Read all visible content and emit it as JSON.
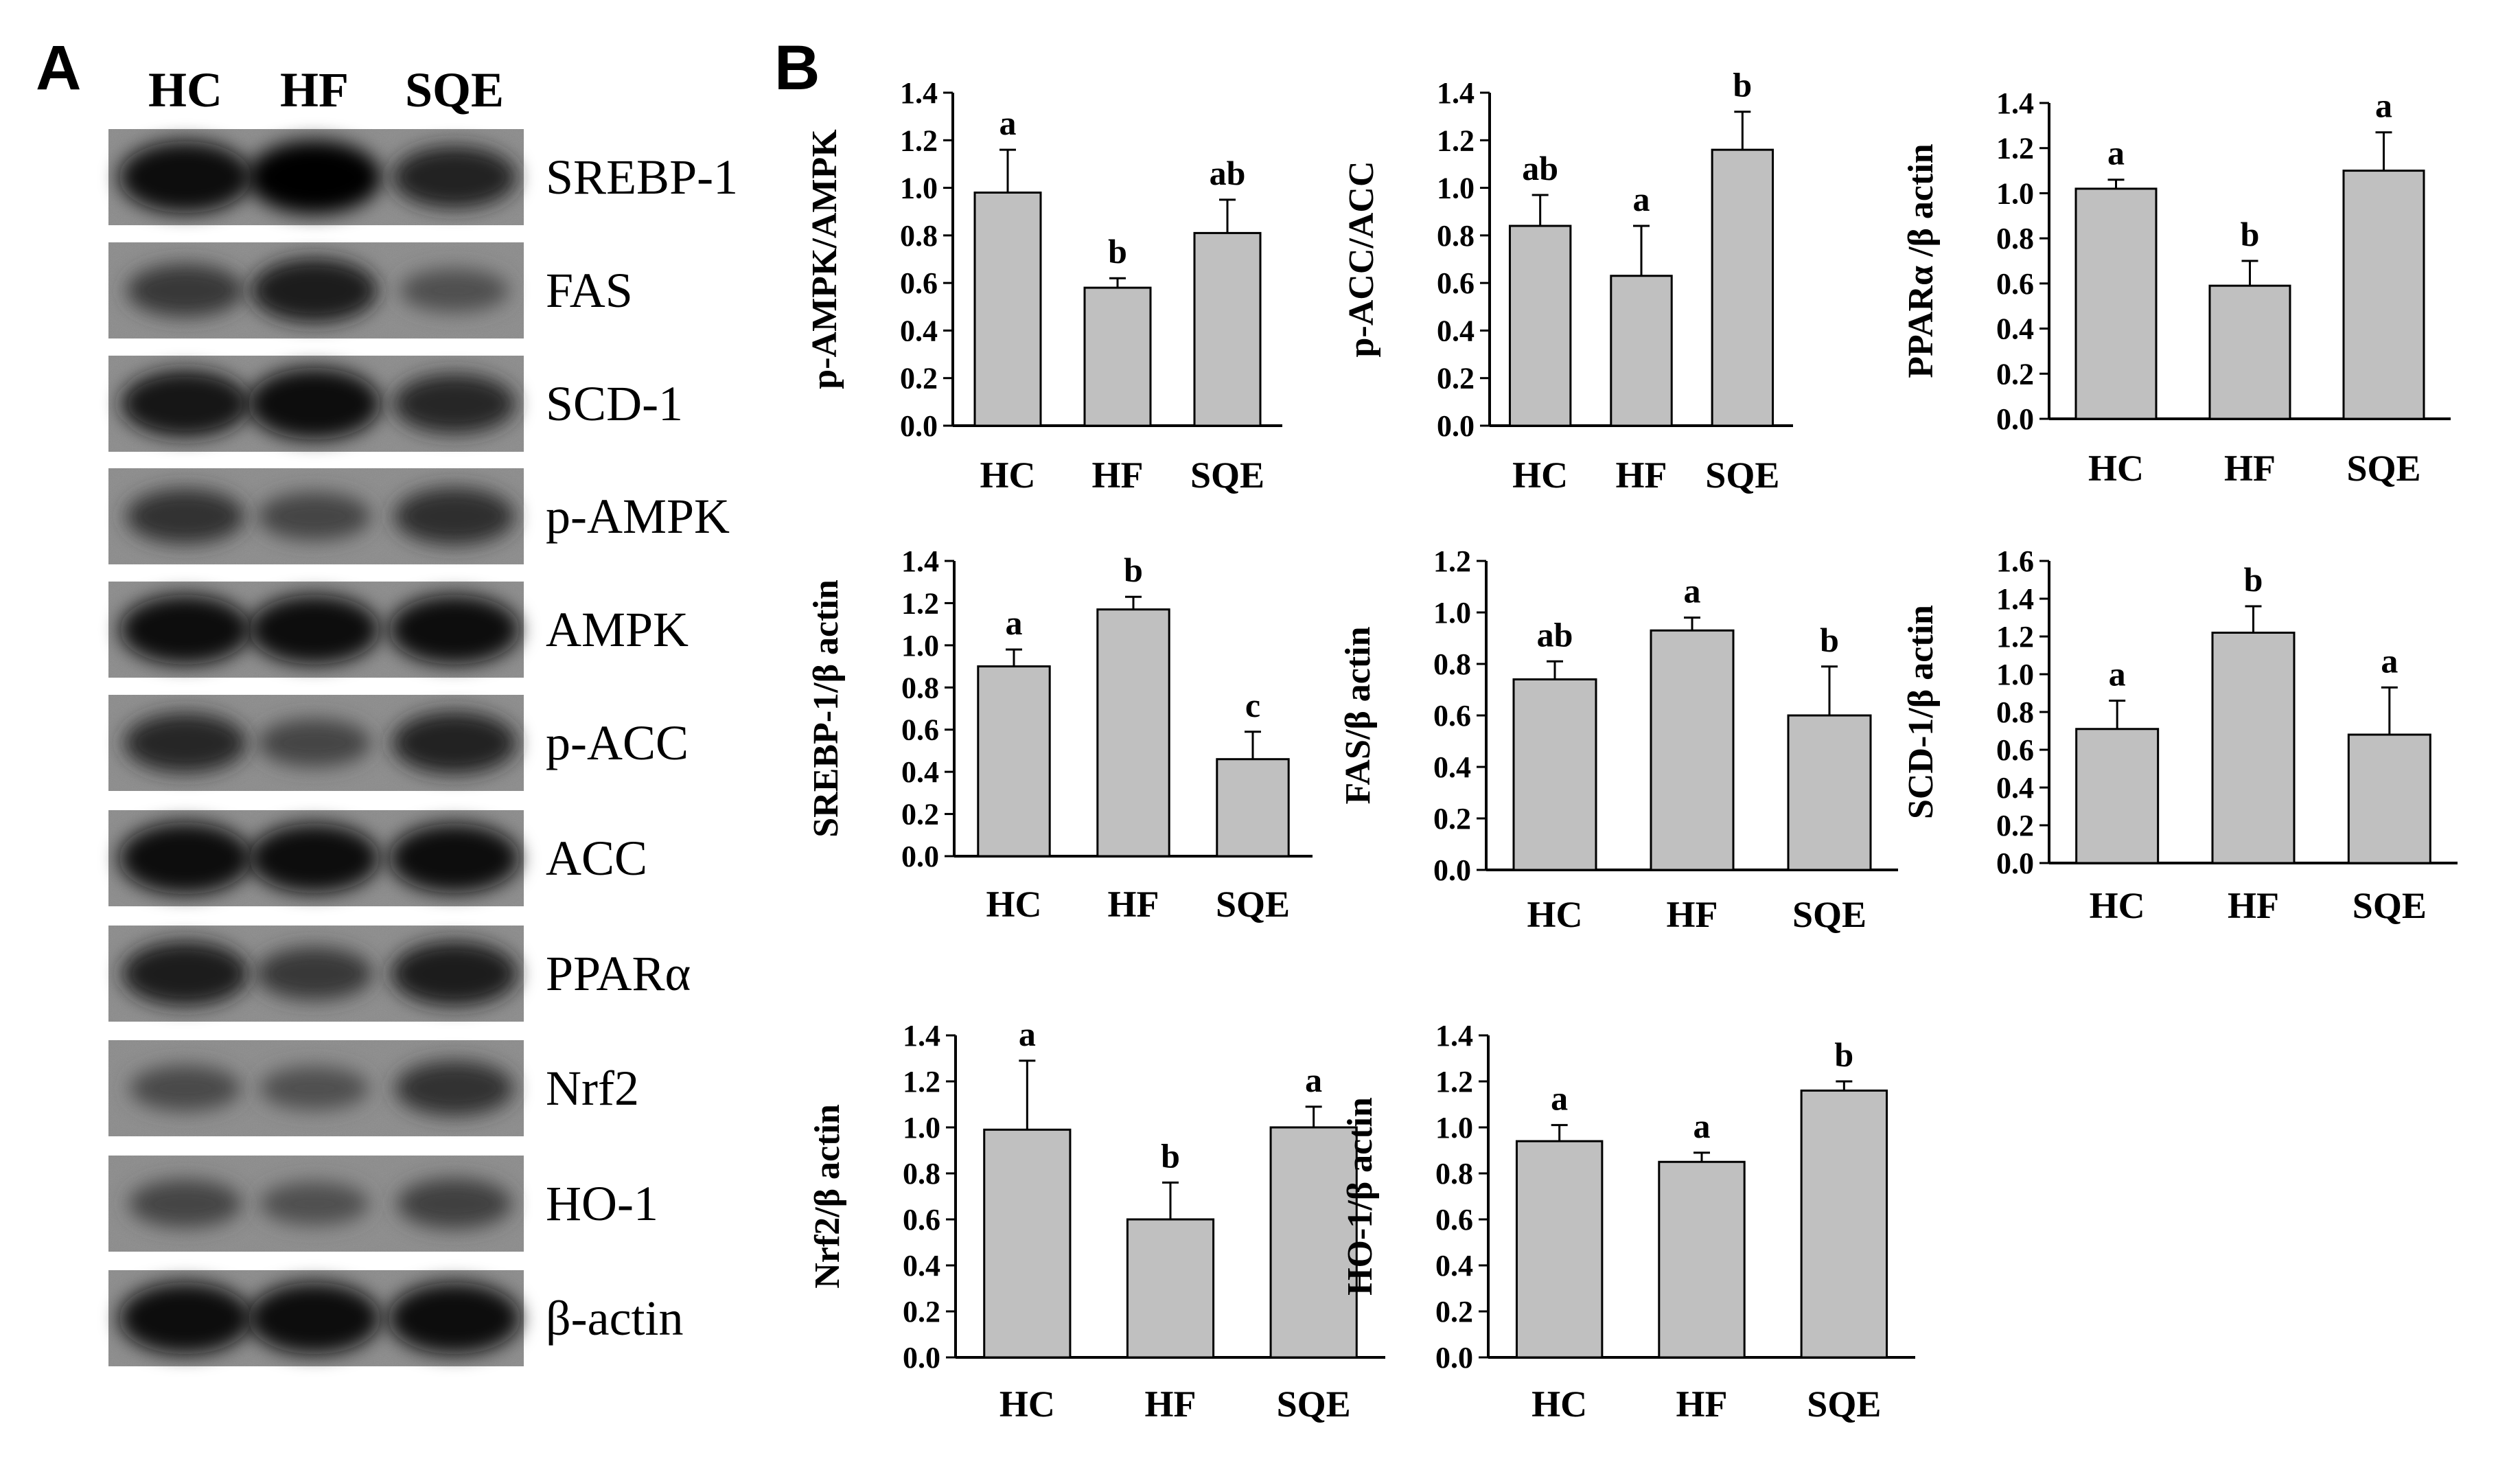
{
  "panel_labels": {
    "a": "A",
    "b": "B"
  },
  "blot": {
    "lanes": [
      "HC",
      "HF",
      "SQE"
    ],
    "rows": [
      {
        "label": "SREBP-1",
        "intensity": [
          0.95,
          1.0,
          0.75
        ]
      },
      {
        "label": "FAS",
        "intensity": [
          0.55,
          0.8,
          0.35
        ]
      },
      {
        "label": "SCD-1",
        "intensity": [
          0.85,
          0.95,
          0.7
        ]
      },
      {
        "label": "p-AMPK",
        "intensity": [
          0.6,
          0.45,
          0.65
        ]
      },
      {
        "label": "AMPK",
        "intensity": [
          0.9,
          0.9,
          0.9
        ]
      },
      {
        "label": "p-ACC",
        "intensity": [
          0.7,
          0.45,
          0.75
        ]
      },
      {
        "label": "ACC",
        "intensity": [
          0.95,
          0.9,
          0.9
        ]
      },
      {
        "label": "PPARα",
        "intensity": [
          0.8,
          0.55,
          0.8
        ]
      },
      {
        "label": "Nrf2",
        "intensity": [
          0.4,
          0.35,
          0.6
        ]
      },
      {
        "label": "HO-1",
        "intensity": [
          0.45,
          0.35,
          0.5
        ]
      },
      {
        "label": "β-actin",
        "intensity": [
          0.95,
          0.95,
          0.95
        ]
      }
    ]
  },
  "chart_data": [
    {
      "type": "bar",
      "ylabel": "p-AMPK/AMPK",
      "categories": [
        "HC",
        "HF",
        "SQE"
      ],
      "values": [
        0.98,
        0.58,
        0.81
      ],
      "errors": [
        0.18,
        0.04,
        0.14
      ],
      "letters": [
        "a",
        "b",
        "ab"
      ],
      "ylim": [
        0,
        1.4
      ],
      "yticks": [
        "0.0",
        "0.2",
        "0.4",
        "0.6",
        "0.8",
        "1.0",
        "1.2",
        "1.4"
      ]
    },
    {
      "type": "bar",
      "ylabel": "p-ACC/ACC",
      "categories": [
        "HC",
        "HF",
        "SQE"
      ],
      "values": [
        0.84,
        0.63,
        1.16
      ],
      "errors": [
        0.13,
        0.21,
        0.16
      ],
      "letters": [
        "ab",
        "a",
        "b"
      ],
      "ylim": [
        0,
        1.4
      ],
      "yticks": [
        "0.0",
        "0.2",
        "0.4",
        "0.6",
        "0.8",
        "1.0",
        "1.2",
        "1.4"
      ]
    },
    {
      "type": "bar",
      "ylabel": "PPARα /β actin",
      "categories": [
        "HC",
        "HF",
        "SQE"
      ],
      "values": [
        1.02,
        0.59,
        1.1
      ],
      "errors": [
        0.04,
        0.11,
        0.17
      ],
      "letters": [
        "a",
        "b",
        "a"
      ],
      "ylim": [
        0,
        1.4
      ],
      "yticks": [
        "0.0",
        "0.2",
        "0.4",
        "0.6",
        "0.8",
        "1.0",
        "1.2",
        "1.4"
      ]
    },
    {
      "type": "bar",
      "ylabel": "SREBP-1/β actin",
      "categories": [
        "HC",
        "HF",
        "SQE"
      ],
      "values": [
        0.9,
        1.17,
        0.46
      ],
      "errors": [
        0.08,
        0.06,
        0.13
      ],
      "letters": [
        "a",
        "b",
        "c"
      ],
      "ylim": [
        0,
        1.4
      ],
      "yticks": [
        "0.0",
        "0.2",
        "0.4",
        "0.6",
        "0.8",
        "1.0",
        "1.2",
        "1.4"
      ]
    },
    {
      "type": "bar",
      "ylabel": "FAS/β actin",
      "categories": [
        "HC",
        "HF",
        "SQE"
      ],
      "values": [
        0.74,
        0.93,
        0.6
      ],
      "errors": [
        0.07,
        0.05,
        0.19
      ],
      "letters": [
        "ab",
        "a",
        "b"
      ],
      "ylim": [
        0,
        1.2
      ],
      "yticks": [
        "0.0",
        "0.2",
        "0.4",
        "0.6",
        "0.8",
        "1.0",
        "1.2"
      ]
    },
    {
      "type": "bar",
      "ylabel": "SCD-1/β actin",
      "categories": [
        "HC",
        "HF",
        "SQE"
      ],
      "values": [
        0.71,
        1.22,
        0.68
      ],
      "errors": [
        0.15,
        0.14,
        0.25
      ],
      "letters": [
        "a",
        "b",
        "a"
      ],
      "ylim": [
        0,
        1.6
      ],
      "yticks": [
        "0.0",
        "0.2",
        "0.4",
        "0.6",
        "0.8",
        "1.0",
        "1.2",
        "1.4",
        "1.6"
      ]
    },
    {
      "type": "bar",
      "ylabel": "Nrf2/β actin",
      "categories": [
        "HC",
        "HF",
        "SQE"
      ],
      "values": [
        0.99,
        0.6,
        1.0
      ],
      "errors": [
        0.3,
        0.16,
        0.09
      ],
      "letters": [
        "a",
        "b",
        "a"
      ],
      "ylim": [
        0,
        1.4
      ],
      "yticks": [
        "0.0",
        "0.2",
        "0.4",
        "0.6",
        "0.8",
        "1.0",
        "1.2",
        "1.4"
      ]
    },
    {
      "type": "bar",
      "ylabel": "HO-1/β actin",
      "categories": [
        "HC",
        "HF",
        "SQE"
      ],
      "values": [
        0.94,
        0.85,
        1.16
      ],
      "errors": [
        0.07,
        0.04,
        0.04
      ],
      "letters": [
        "a",
        "a",
        "b"
      ],
      "ylim": [
        0,
        1.4
      ],
      "yticks": [
        "0.0",
        "0.2",
        "0.4",
        "0.6",
        "0.8",
        "1.0",
        "1.2",
        "1.4"
      ]
    }
  ],
  "colors": {
    "bar_fill": "#c0c0c0",
    "bar_stroke": "#000000",
    "text": "#000000"
  }
}
